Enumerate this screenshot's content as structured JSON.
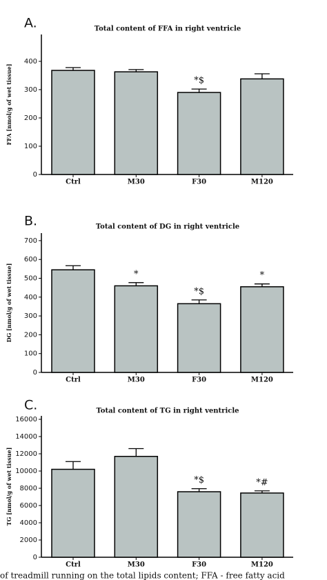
{
  "chart_data": [
    {
      "type": "bar",
      "panel_label": "A.",
      "title": "Total content of FFA in right ventricle",
      "ylabel": "FFA [nmol/g of wet tissue]",
      "categories": [
        "Ctrl",
        "M30",
        "F30",
        "M120"
      ],
      "values": [
        368,
        363,
        290,
        338
      ],
      "errors": [
        10,
        8,
        12,
        18
      ],
      "annotations": [
        null,
        null,
        "*$",
        null
      ],
      "color": "#b9c3c2",
      "ylim": [
        0,
        495
      ],
      "yticks": [
        0,
        100,
        200,
        300,
        400
      ]
    },
    {
      "type": "bar",
      "panel_label": "B.",
      "title": "Total content of DG in right ventricle",
      "ylabel": "DG [nmol/g of wet tissue]",
      "categories": [
        "Ctrl",
        "M30",
        "F30",
        "M120"
      ],
      "values": [
        545,
        460,
        365,
        455
      ],
      "errors": [
        22,
        17,
        20,
        15
      ],
      "annotations": [
        null,
        "*",
        "*$",
        "*"
      ],
      "color": "#b9c3c2",
      "ylim": [
        0,
        740
      ],
      "yticks": [
        0,
        100,
        200,
        300,
        400,
        500,
        600,
        700
      ]
    },
    {
      "type": "bar",
      "panel_label": "C.",
      "title": "Total content of TG in right ventricle",
      "ylabel": "TG [nmol/g of wet tissue]",
      "categories": [
        "Ctrl",
        "M30",
        "F30",
        "M120"
      ],
      "values": [
        10200,
        11700,
        7600,
        7450
      ],
      "errors": [
        900,
        900,
        350,
        250
      ],
      "annotations": [
        null,
        null,
        "*$",
        "*#"
      ],
      "color": "#b9c3c2",
      "ylim": [
        0,
        16400
      ],
      "yticks": [
        0,
        2000,
        4000,
        6000,
        8000,
        10000,
        12000,
        14000,
        16000
      ]
    }
  ],
  "caption": "of treadmill running on the total lipids content; FFA - free fatty acid"
}
